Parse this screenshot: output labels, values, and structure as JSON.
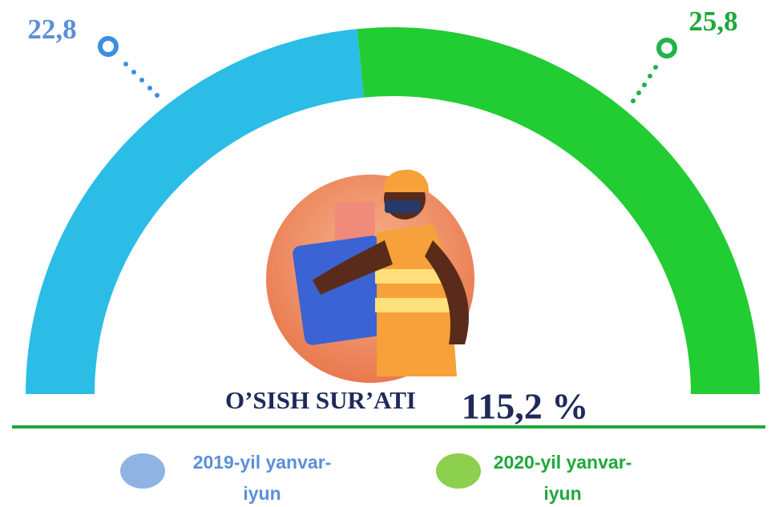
{
  "chart_data": {
    "type": "semi-donut",
    "categories": [
      "2019-yil yanvar-iyun",
      "2020-yil yanvar-iyun"
    ],
    "values": [
      22.8,
      25.8
    ],
    "value_labels": [
      "22,8",
      "25,8"
    ],
    "colors": [
      "#2bbde6",
      "#22cc33"
    ],
    "label_colors": [
      "#5b8fd8",
      "#1fa83a"
    ],
    "legend_colors": [
      "#8fb4e3",
      "#8dcf4f"
    ],
    "annotations": [
      "O’SISH SUR’ATI",
      "115,2 %"
    ]
  }
}
